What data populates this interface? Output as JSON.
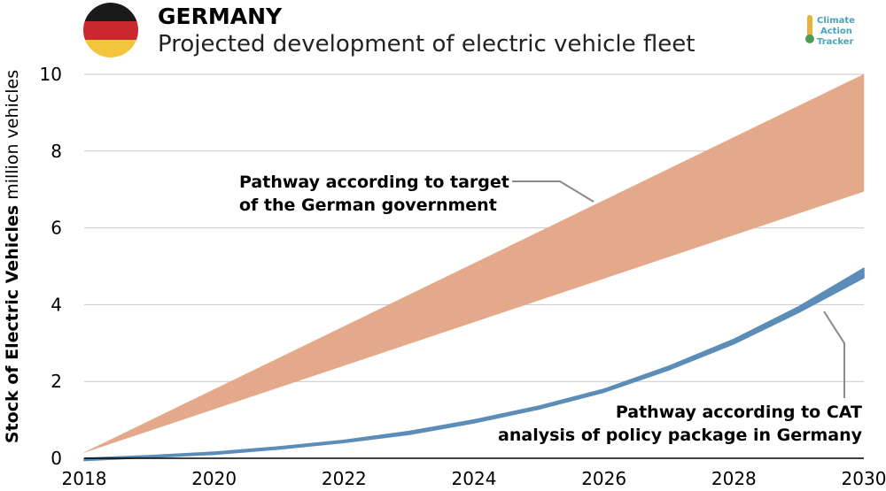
{
  "header": {
    "country": "GERMANY",
    "subtitle": "Projected development of electric vehicle fleet"
  },
  "logo": {
    "line1": "Climate",
    "line2": "Action",
    "line3": "Tracker"
  },
  "colors": {
    "flag_black": "#1a1a1a",
    "flag_red": "#c8282e",
    "flag_gold": "#f2c53d",
    "target_band": "#e3a98a",
    "cat_band": "#5b8db8",
    "grid": "#c8c8c8",
    "leader": "#8a8a8a"
  },
  "chart_data": {
    "type": "area",
    "ylabel_bold": "Stock of Electric Vehicles",
    "ylabel_unit": "million vehicles",
    "xlim": [
      2018,
      2030
    ],
    "ylim": [
      0,
      10
    ],
    "xticks": [
      "2018",
      "2020",
      "2022",
      "2024",
      "2026",
      "2028",
      "2030"
    ],
    "yticks": [
      "0",
      "2",
      "4",
      "6",
      "8",
      "10"
    ],
    "series": [
      {
        "name": "Pathway according to target of the German government",
        "x": [
          2018,
          2030
        ],
        "upper": [
          0.15,
          10.0
        ],
        "lower": [
          0.15,
          6.95
        ]
      },
      {
        "name": "Pathway according to CAT analysis of policy package in Germany",
        "x": [
          2018,
          2019,
          2020,
          2021,
          2022,
          2023,
          2024,
          2025,
          2026,
          2027,
          2028,
          2029,
          2030
        ],
        "upper": [
          0.0,
          0.07,
          0.16,
          0.3,
          0.47,
          0.7,
          1.0,
          1.36,
          1.8,
          2.4,
          3.1,
          3.95,
          4.95
        ],
        "lower": [
          -0.06,
          0.02,
          0.1,
          0.24,
          0.41,
          0.62,
          0.92,
          1.28,
          1.72,
          2.3,
          2.98,
          3.8,
          4.7
        ]
      }
    ],
    "annotations": {
      "target_line1": "Pathway according to target",
      "target_line2": "of the German government",
      "cat_line1": "Pathway according to CAT",
      "cat_line2": "analysis of policy package in Germany"
    }
  }
}
